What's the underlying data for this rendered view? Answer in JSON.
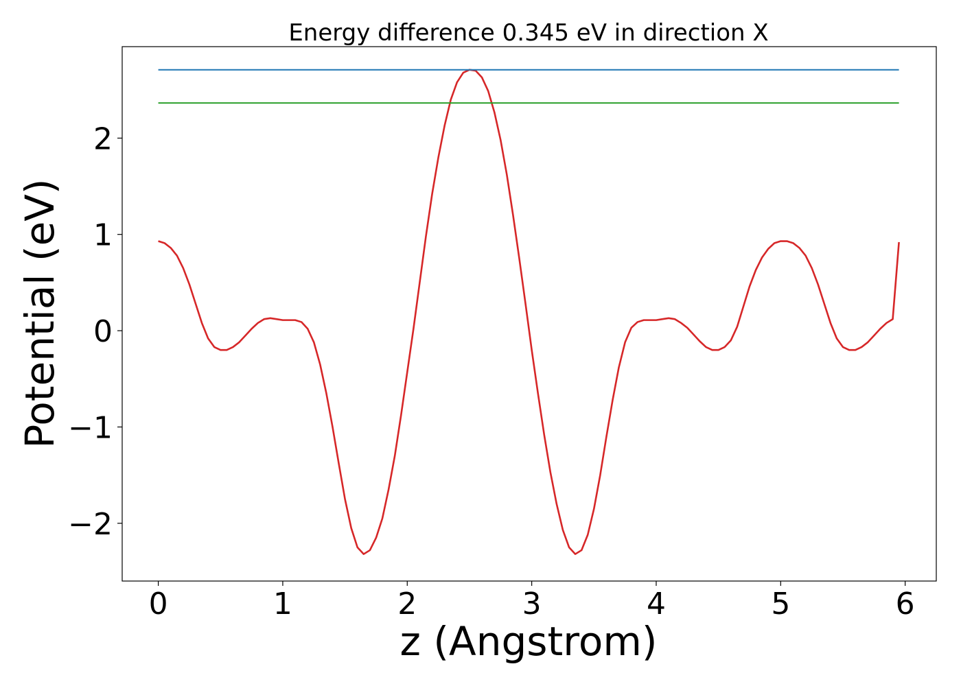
{
  "chart_data": {
    "type": "line",
    "title": "Energy difference 0.345 eV in direction X",
    "xlabel": "z (Angstrom)",
    "ylabel": "Potential (eV)",
    "xlim": [
      -0.29,
      6.25
    ],
    "ylim": [
      -2.6,
      2.95
    ],
    "xticks": [
      0,
      1,
      2,
      3,
      4,
      5,
      6
    ],
    "xtick_labels": [
      "0",
      "1",
      "2",
      "3",
      "4",
      "5",
      "6"
    ],
    "yticks": [
      -2,
      -1,
      0,
      1,
      2
    ],
    "ytick_labels": [
      "−2",
      "−1",
      "0",
      "1",
      "2"
    ],
    "grid": false,
    "legend": "none",
    "series": [
      {
        "color": "#d62728",
        "x": [
          0.0,
          0.05,
          0.1,
          0.15,
          0.2,
          0.25,
          0.3,
          0.35,
          0.4,
          0.45,
          0.5,
          0.55,
          0.6,
          0.65,
          0.7,
          0.75,
          0.8,
          0.85,
          0.9,
          0.95,
          1.0,
          1.05,
          1.1,
          1.15,
          1.2,
          1.25,
          1.3,
          1.35,
          1.4,
          1.45,
          1.5,
          1.55,
          1.6,
          1.65,
          1.7,
          1.75,
          1.8,
          1.85,
          1.9,
          1.95,
          2.0,
          2.05,
          2.1,
          2.15,
          2.2,
          2.25,
          2.3,
          2.35,
          2.4,
          2.45,
          2.5,
          2.55,
          2.6,
          2.65,
          2.7,
          2.75,
          2.8,
          2.85,
          2.9,
          2.95,
          3.0,
          3.05,
          3.1,
          3.15,
          3.2,
          3.25,
          3.3,
          3.35,
          3.4,
          3.45,
          3.5,
          3.55,
          3.6,
          3.65,
          3.7,
          3.75,
          3.8,
          3.85,
          3.9,
          3.95,
          4.0,
          4.05,
          4.1,
          4.15,
          4.2,
          4.25,
          4.3,
          4.35,
          4.4,
          4.45,
          4.5,
          4.55,
          4.6,
          4.65,
          4.7,
          4.75,
          4.8,
          4.85,
          4.9,
          4.95,
          5.0,
          5.05,
          5.1,
          5.15,
          5.2,
          5.25,
          5.3,
          5.35,
          5.4,
          5.45,
          5.5,
          5.55,
          5.6,
          5.65,
          5.7,
          5.75,
          5.8,
          5.85,
          5.9,
          5.95
        ],
        "y": [
          0.93,
          0.91,
          0.86,
          0.78,
          0.65,
          0.48,
          0.28,
          0.08,
          -0.08,
          -0.17,
          -0.2,
          -0.2,
          -0.17,
          -0.12,
          -0.05,
          0.02,
          0.08,
          0.12,
          0.13,
          0.12,
          0.11,
          0.11,
          0.11,
          0.09,
          0.02,
          -0.12,
          -0.35,
          -0.65,
          -1.0,
          -1.38,
          -1.75,
          -2.05,
          -2.25,
          -2.32,
          -2.28,
          -2.15,
          -1.95,
          -1.65,
          -1.3,
          -0.88,
          -0.43,
          0.02,
          0.5,
          0.98,
          1.42,
          1.8,
          2.13,
          2.4,
          2.58,
          2.68,
          2.71,
          2.7,
          2.63,
          2.49,
          2.27,
          1.98,
          1.62,
          1.2,
          0.75,
          0.28,
          -0.2,
          -0.65,
          -1.08,
          -1.47,
          -1.8,
          -2.07,
          -2.25,
          -2.32,
          -2.28,
          -2.12,
          -1.85,
          -1.5,
          -1.1,
          -0.72,
          -0.38,
          -0.12,
          0.03,
          0.09,
          0.11,
          0.11,
          0.11,
          0.12,
          0.13,
          0.12,
          0.08,
          0.03,
          -0.04,
          -0.11,
          -0.17,
          -0.2,
          -0.2,
          -0.17,
          -0.1,
          0.04,
          0.25,
          0.46,
          0.63,
          0.76,
          0.85,
          0.91,
          0.93,
          0.93,
          0.91,
          0.86,
          0.78,
          0.65,
          0.48,
          0.28,
          0.08,
          -0.08,
          -0.17,
          -0.2,
          -0.2,
          -0.17,
          -0.12,
          -0.05,
          0.02,
          0.08,
          0.12,
          0.92
        ]
      },
      {
        "color": "#1f77b4",
        "x": [
          0.0,
          5.95
        ],
        "y": [
          2.71,
          2.71
        ]
      },
      {
        "color": "#2ca02c",
        "x": [
          0.0,
          5.95
        ],
        "y": [
          2.365,
          2.365
        ]
      }
    ]
  }
}
